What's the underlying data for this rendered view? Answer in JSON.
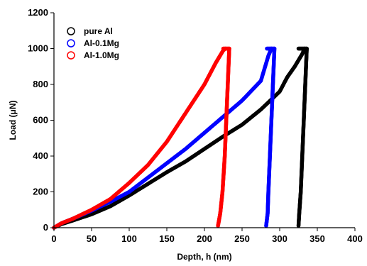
{
  "chart_data": {
    "type": "scatter",
    "xlabel": "Depth, h (nm)",
    "ylabel": "Load (μN)",
    "xlim": [
      0,
      400
    ],
    "ylim": [
      0,
      1200
    ],
    "xticks": [
      0,
      50,
      100,
      150,
      200,
      250,
      300,
      350,
      400
    ],
    "yticks": [
      0,
      200,
      400,
      600,
      800,
      1000,
      1200
    ],
    "grid": false,
    "legend_position": "top-left",
    "series": [
      {
        "name": "pure Al",
        "color": "#000000",
        "marker": "open-circle",
        "loading": [
          [
            0,
            0
          ],
          [
            10,
            20
          ],
          [
            25,
            40
          ],
          [
            50,
            75
          ],
          [
            75,
            120
          ],
          [
            100,
            180
          ],
          [
            125,
            245
          ],
          [
            150,
            310
          ],
          [
            175,
            370
          ],
          [
            200,
            440
          ],
          [
            225,
            510
          ],
          [
            250,
            575
          ],
          [
            275,
            660
          ],
          [
            300,
            760
          ],
          [
            310,
            840
          ],
          [
            320,
            900
          ],
          [
            330,
            970
          ],
          [
            333,
            1000
          ]
        ],
        "hold": [
          [
            325,
            1000
          ],
          [
            336,
            1000
          ]
        ],
        "unloading": [
          [
            336,
            1000
          ],
          [
            334,
            800
          ],
          [
            332,
            600
          ],
          [
            330,
            400
          ],
          [
            328,
            200
          ],
          [
            326,
            80
          ],
          [
            325,
            10
          ]
        ]
      },
      {
        "name": "Al-0.1Mg",
        "color": "#0000ff",
        "marker": "open-circle",
        "loading": [
          [
            0,
            0
          ],
          [
            10,
            25
          ],
          [
            25,
            50
          ],
          [
            50,
            95
          ],
          [
            75,
            145
          ],
          [
            100,
            200
          ],
          [
            125,
            280
          ],
          [
            150,
            360
          ],
          [
            175,
            440
          ],
          [
            200,
            530
          ],
          [
            225,
            620
          ],
          [
            250,
            710
          ],
          [
            275,
            820
          ],
          [
            285,
            960
          ],
          [
            289,
            1000
          ]
        ],
        "hold": [
          [
            283,
            1000
          ],
          [
            293,
            1000
          ]
        ],
        "unloading": [
          [
            293,
            1000
          ],
          [
            291,
            800
          ],
          [
            289,
            600
          ],
          [
            287,
            400
          ],
          [
            285,
            200
          ],
          [
            284,
            80
          ],
          [
            282,
            10
          ]
        ]
      },
      {
        "name": "Al-1.0Mg",
        "color": "#ff0000",
        "marker": "open-circle",
        "loading": [
          [
            0,
            0
          ],
          [
            10,
            25
          ],
          [
            25,
            50
          ],
          [
            50,
            100
          ],
          [
            75,
            160
          ],
          [
            100,
            250
          ],
          [
            125,
            350
          ],
          [
            150,
            480
          ],
          [
            175,
            640
          ],
          [
            200,
            800
          ],
          [
            215,
            920
          ],
          [
            225,
            990
          ],
          [
            228,
            1000
          ]
        ],
        "hold": [
          [
            225,
            1000
          ],
          [
            233,
            1000
          ]
        ],
        "unloading": [
          [
            233,
            1000
          ],
          [
            231,
            800
          ],
          [
            229,
            600
          ],
          [
            227,
            400
          ],
          [
            224,
            200
          ],
          [
            221,
            80
          ],
          [
            218,
            10
          ]
        ]
      }
    ]
  }
}
